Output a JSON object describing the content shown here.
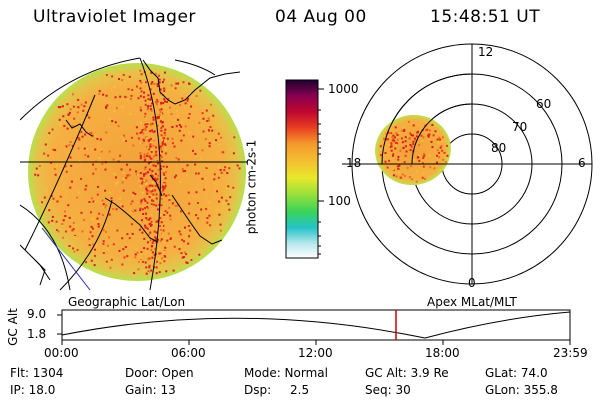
{
  "header": {
    "instrument": "Ultraviolet Imager",
    "date": "04 Aug 00",
    "time": "15:48:51 UT"
  },
  "colorbar": {
    "label": "photon cm-2s-1",
    "ticks": [
      "1000",
      "100"
    ]
  },
  "polar_plot": {
    "mlt_labels": [
      "12",
      "18",
      "6",
      "0"
    ],
    "lat_labels": [
      "60",
      "70",
      "80"
    ]
  },
  "panel_labels": {
    "geographic": "Geographic Lat/Lon",
    "apex": "Apex MLat/MLT"
  },
  "altitude_plot": {
    "ylabel": "GC Alt",
    "yticks": [
      "9.0",
      "1.8"
    ],
    "xticks": [
      "00:00",
      "06:00",
      "12:00",
      "18:00",
      "23:59"
    ]
  },
  "info": {
    "flt": "Flt: 1304",
    "ip": "IP: 18.0",
    "door": "Door: Open",
    "gain": "Gain: 13",
    "mode": "Mode: Normal",
    "dsp_label": "Dsp:",
    "dsp_value": "2.5",
    "gc_alt": "GC Alt: 3.9 Re",
    "seq": "Seq: 30",
    "glat": "GLat:  74.0",
    "glon": "GLon: 355.8"
  },
  "colors": {
    "aurora_base": "#f2a53c",
    "limb": "#9fe04a",
    "marker": "#cc0000"
  }
}
